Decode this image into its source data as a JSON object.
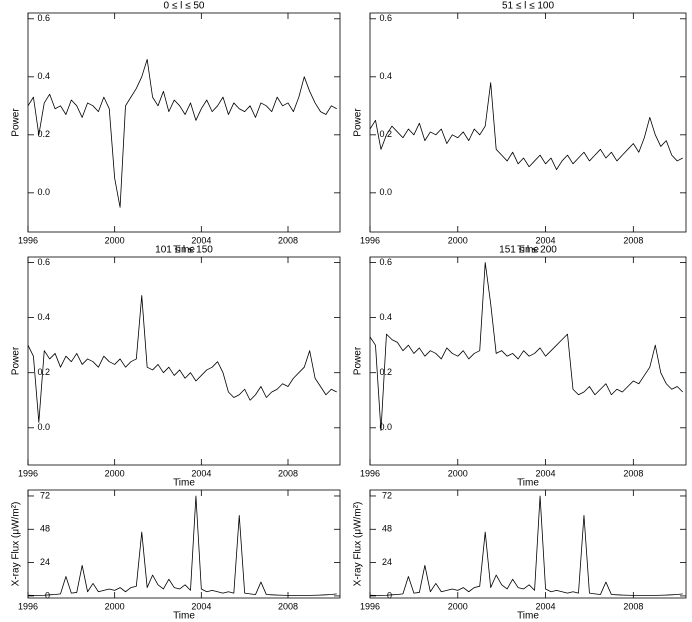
{
  "chart_data": [
    {
      "type": "line",
      "title": "0 ≤ l ≤ 50",
      "x_label": "Time",
      "y_label": "Power",
      "color": "#000000",
      "xlim": [
        1996,
        2010.4
      ],
      "xticks": [
        1996,
        2000,
        2004,
        2008
      ],
      "ylim": [
        -0.135,
        0.62
      ],
      "yticks": [
        {
          "value": 0,
          "label": "0.0"
        },
        0.2,
        0.4,
        0.6
      ],
      "x": [
        1996,
        1996.25,
        1996.5,
        1996.75,
        1997,
        1997.25,
        1997.5,
        1997.75,
        1998,
        1998.25,
        1998.5,
        1998.75,
        1999,
        1999.25,
        1999.5,
        1999.75,
        2000,
        2000.25,
        2000.5,
        2000.75,
        2001,
        2001.25,
        2001.5,
        2001.75,
        2002,
        2002.25,
        2002.5,
        2002.75,
        2003,
        2003.25,
        2003.5,
        2003.75,
        2004,
        2004.25,
        2004.5,
        2004.75,
        2005,
        2005.25,
        2005.5,
        2005.75,
        2006,
        2006.25,
        2006.5,
        2006.75,
        2007,
        2007.25,
        2007.5,
        2007.75,
        2008,
        2008.25,
        2008.5,
        2008.75,
        2009,
        2009.25,
        2009.5,
        2009.75,
        2010,
        2010.25
      ],
      "values": [
        0.3,
        0.33,
        0.2,
        0.31,
        0.34,
        0.29,
        0.3,
        0.27,
        0.32,
        0.3,
        0.26,
        0.31,
        0.3,
        0.28,
        0.33,
        0.29,
        0.05,
        -0.05,
        0.3,
        0.33,
        0.36,
        0.4,
        0.46,
        0.33,
        0.3,
        0.35,
        0.28,
        0.32,
        0.3,
        0.27,
        0.31,
        0.25,
        0.29,
        0.32,
        0.28,
        0.3,
        0.33,
        0.27,
        0.31,
        0.29,
        0.28,
        0.3,
        0.26,
        0.31,
        0.3,
        0.28,
        0.33,
        0.3,
        0.31,
        0.28,
        0.33,
        0.4,
        0.35,
        0.31,
        0.28,
        0.27,
        0.3,
        0.29
      ]
    },
    {
      "type": "line",
      "title": "51 ≤ l ≤ 100",
      "x_label": "Time",
      "y_label": "Power",
      "color": "#000000",
      "xlim": [
        1996,
        2010.4
      ],
      "xticks": [
        1996,
        2000,
        2004,
        2008
      ],
      "ylim": [
        -0.135,
        0.62
      ],
      "yticks": [
        {
          "value": 0,
          "label": "0.0"
        },
        0.2,
        0.4,
        0.6
      ],
      "x": [
        1996,
        1996.25,
        1996.5,
        1996.75,
        1997,
        1997.25,
        1997.5,
        1997.75,
        1998,
        1998.25,
        1998.5,
        1998.75,
        1999,
        1999.25,
        1999.5,
        1999.75,
        2000,
        2000.25,
        2000.5,
        2000.75,
        2001,
        2001.25,
        2001.5,
        2001.75,
        2002,
        2002.25,
        2002.5,
        2002.75,
        2003,
        2003.25,
        2003.5,
        2003.75,
        2004,
        2004.25,
        2004.5,
        2004.75,
        2005,
        2005.25,
        2005.5,
        2005.75,
        2006,
        2006.25,
        2006.5,
        2006.75,
        2007,
        2007.25,
        2007.5,
        2007.75,
        2008,
        2008.25,
        2008.5,
        2008.75,
        2009,
        2009.25,
        2009.5,
        2009.75,
        2010,
        2010.25
      ],
      "values": [
        0.22,
        0.25,
        0.15,
        0.2,
        0.23,
        0.21,
        0.19,
        0.22,
        0.2,
        0.24,
        0.18,
        0.21,
        0.2,
        0.22,
        0.17,
        0.2,
        0.19,
        0.21,
        0.18,
        0.22,
        0.2,
        0.23,
        0.38,
        0.15,
        0.13,
        0.11,
        0.14,
        0.1,
        0.12,
        0.09,
        0.11,
        0.13,
        0.1,
        0.12,
        0.08,
        0.11,
        0.13,
        0.1,
        0.12,
        0.14,
        0.11,
        0.13,
        0.15,
        0.12,
        0.14,
        0.11,
        0.13,
        0.15,
        0.17,
        0.14,
        0.19,
        0.26,
        0.2,
        0.16,
        0.18,
        0.13,
        0.11,
        0.12
      ]
    },
    {
      "type": "line",
      "title": "101 ≤ l ≤ 150",
      "x_label": "Time",
      "y_label": "Power",
      "color": "#000000",
      "xlim": [
        1996,
        2010.4
      ],
      "xticks": [
        1996,
        2000,
        2004,
        2008
      ],
      "ylim": [
        -0.135,
        0.62
      ],
      "yticks": [
        {
          "value": 0,
          "label": "0.0"
        },
        0.2,
        0.4,
        0.6
      ],
      "x": [
        1996,
        1996.25,
        1996.5,
        1996.75,
        1997,
        1997.25,
        1997.5,
        1997.75,
        1998,
        1998.25,
        1998.5,
        1998.75,
        1999,
        1999.25,
        1999.5,
        1999.75,
        2000,
        2000.25,
        2000.5,
        2000.75,
        2001,
        2001.25,
        2001.5,
        2001.75,
        2002,
        2002.25,
        2002.5,
        2002.75,
        2003,
        2003.25,
        2003.5,
        2003.75,
        2004,
        2004.25,
        2004.5,
        2004.75,
        2005,
        2005.25,
        2005.5,
        2005.75,
        2006,
        2006.25,
        2006.5,
        2006.75,
        2007,
        2007.25,
        2007.5,
        2007.75,
        2008,
        2008.25,
        2008.5,
        2008.75,
        2009,
        2009.25,
        2009.5,
        2009.75,
        2010,
        2010.25
      ],
      "values": [
        0.3,
        0.26,
        0.02,
        0.28,
        0.25,
        0.27,
        0.22,
        0.26,
        0.24,
        0.27,
        0.23,
        0.25,
        0.24,
        0.22,
        0.26,
        0.24,
        0.23,
        0.25,
        0.22,
        0.24,
        0.25,
        0.48,
        0.22,
        0.21,
        0.23,
        0.2,
        0.22,
        0.19,
        0.21,
        0.18,
        0.2,
        0.17,
        0.19,
        0.21,
        0.22,
        0.24,
        0.2,
        0.13,
        0.11,
        0.12,
        0.14,
        0.1,
        0.12,
        0.15,
        0.11,
        0.13,
        0.14,
        0.16,
        0.15,
        0.18,
        0.2,
        0.22,
        0.28,
        0.18,
        0.15,
        0.12,
        0.14,
        0.13
      ]
    },
    {
      "type": "line",
      "title": "151 ≤ l ≤ 200",
      "x_label": "Time",
      "y_label": "Power",
      "color": "#000000",
      "xlim": [
        1996,
        2010.4
      ],
      "xticks": [
        1996,
        2000,
        2004,
        2008
      ],
      "ylim": [
        -0.135,
        0.62
      ],
      "yticks": [
        {
          "value": 0,
          "label": "0.0"
        },
        0.2,
        0.4,
        0.6
      ],
      "x": [
        1996,
        1996.25,
        1996.5,
        1996.75,
        1997,
        1997.25,
        1997.5,
        1997.75,
        1998,
        1998.25,
        1998.5,
        1998.75,
        1999,
        1999.25,
        1999.5,
        1999.75,
        2000,
        2000.25,
        2000.5,
        2000.75,
        2001,
        2001.25,
        2001.5,
        2001.75,
        2002,
        2002.25,
        2002.5,
        2002.75,
        2003,
        2003.25,
        2003.5,
        2003.75,
        2004,
        2004.25,
        2004.5,
        2004.75,
        2005,
        2005.25,
        2005.5,
        2005.75,
        2006,
        2006.25,
        2006.5,
        2006.75,
        2007,
        2007.25,
        2007.5,
        2007.75,
        2008,
        2008.25,
        2008.5,
        2008.75,
        2009,
        2009.25,
        2009.5,
        2009.75,
        2010,
        2010.25
      ],
      "values": [
        0.33,
        0.3,
        -0.01,
        0.34,
        0.32,
        0.31,
        0.28,
        0.3,
        0.27,
        0.29,
        0.26,
        0.28,
        0.27,
        0.25,
        0.29,
        0.27,
        0.26,
        0.28,
        0.25,
        0.27,
        0.28,
        0.6,
        0.45,
        0.27,
        0.28,
        0.26,
        0.27,
        0.25,
        0.28,
        0.26,
        0.27,
        0.29,
        0.26,
        0.28,
        0.3,
        0.32,
        0.34,
        0.14,
        0.12,
        0.13,
        0.15,
        0.12,
        0.14,
        0.16,
        0.12,
        0.14,
        0.13,
        0.15,
        0.17,
        0.16,
        0.19,
        0.22,
        0.3,
        0.2,
        0.16,
        0.14,
        0.15,
        0.13
      ]
    },
    {
      "type": "line",
      "x_label": "Time",
      "y_label": "X-ray Flux (μW/m²)",
      "color": "#000000",
      "xlim": [
        1996,
        2010.4
      ],
      "xticks": [
        1996,
        2000,
        2004,
        2008
      ],
      "ylim": [
        -1.5,
        76.3
      ],
      "yticks": [
        0,
        24,
        48,
        72
      ],
      "x": [
        1996,
        1996.25,
        1996.5,
        1996.75,
        1997,
        1997.25,
        1997.5,
        1997.75,
        1998,
        1998.25,
        1998.5,
        1998.75,
        1999,
        1999.25,
        1999.5,
        1999.75,
        2000,
        2000.25,
        2000.5,
        2000.75,
        2001,
        2001.25,
        2001.5,
        2001.75,
        2002,
        2002.25,
        2002.5,
        2002.75,
        2003,
        2003.25,
        2003.5,
        2003.75,
        2004,
        2004.25,
        2004.5,
        2004.75,
        2005,
        2005.25,
        2005.5,
        2005.75,
        2006,
        2006.25,
        2006.5,
        2006.75,
        2007,
        2007.25,
        2007.5,
        2007.75,
        2008,
        2008.25,
        2008.5,
        2008.75,
        2009,
        2009.25,
        2009.5,
        2009.75,
        2010,
        2010.25
      ],
      "values": [
        0.5,
        0.4,
        0.4,
        0.5,
        0.8,
        1,
        1.5,
        14,
        2,
        2.5,
        22,
        3,
        9,
        3,
        4,
        5,
        4,
        6,
        3,
        6,
        7,
        46,
        6,
        15,
        8,
        5,
        12,
        6,
        5,
        8,
        4,
        72,
        5,
        3,
        4,
        3,
        2,
        3,
        2,
        58,
        2,
        1.5,
        1,
        10,
        1,
        0.8,
        0.6,
        0.5,
        0.4,
        0.4,
        0.4,
        0.4,
        0.4,
        0.5,
        0.6,
        0.8,
        1,
        1.5
      ]
    },
    {
      "type": "line",
      "x_label": "Time",
      "y_label": "X-ray Flux (μW/m²)",
      "color": "#000000",
      "xlim": [
        1996,
        2010.4
      ],
      "xticks": [
        1996,
        2000,
        2004,
        2008
      ],
      "ylim": [
        -1.5,
        76.3
      ],
      "yticks": [
        0,
        24,
        48,
        72
      ],
      "x": [
        1996,
        1996.25,
        1996.5,
        1996.75,
        1997,
        1997.25,
        1997.5,
        1997.75,
        1998,
        1998.25,
        1998.5,
        1998.75,
        1999,
        1999.25,
        1999.5,
        1999.75,
        2000,
        2000.25,
        2000.5,
        2000.75,
        2001,
        2001.25,
        2001.5,
        2001.75,
        2002,
        2002.25,
        2002.5,
        2002.75,
        2003,
        2003.25,
        2003.5,
        2003.75,
        2004,
        2004.25,
        2004.5,
        2004.75,
        2005,
        2005.25,
        2005.5,
        2005.75,
        2006,
        2006.25,
        2006.5,
        2006.75,
        2007,
        2007.25,
        2007.5,
        2007.75,
        2008,
        2008.25,
        2008.5,
        2008.75,
        2009,
        2009.25,
        2009.5,
        2009.75,
        2010,
        2010.25
      ],
      "values": [
        0.5,
        0.4,
        0.4,
        0.5,
        0.8,
        1,
        1.5,
        14,
        2,
        2.5,
        22,
        3,
        9,
        3,
        4,
        5,
        4,
        6,
        3,
        6,
        7,
        46,
        6,
        15,
        8,
        5,
        12,
        6,
        5,
        8,
        4,
        72,
        5,
        3,
        4,
        3,
        2,
        3,
        2,
        58,
        2,
        1.5,
        1,
        10,
        1,
        0.8,
        0.6,
        0.5,
        0.4,
        0.4,
        0.4,
        0.4,
        0.4,
        0.5,
        0.6,
        0.8,
        1,
        1.5
      ]
    }
  ]
}
